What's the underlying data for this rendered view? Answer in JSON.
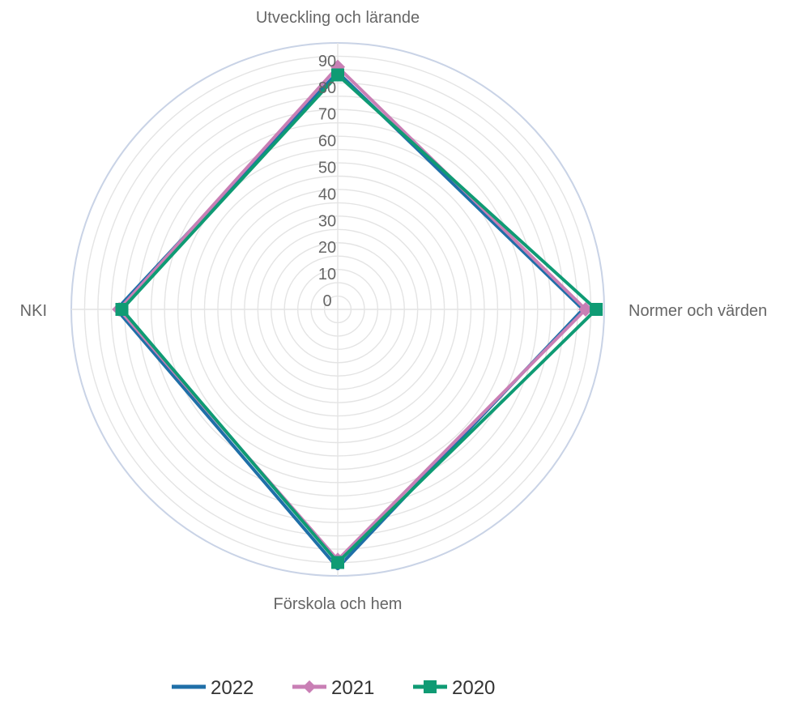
{
  "chart_data": {
    "type": "radar",
    "title": "",
    "axes": [
      "Utveckling och lärande",
      "Normer och värden",
      "Förskola och hem",
      "NKI"
    ],
    "r_ticks": [
      0,
      10,
      20,
      30,
      40,
      50,
      60,
      70,
      80,
      90
    ],
    "r_range": [
      0,
      100
    ],
    "grid": true,
    "legend_position": "bottom",
    "series": [
      {
        "name": "2022",
        "values": [
          89,
          92,
          97,
          83
        ],
        "color": "#1f6fa8",
        "marker": "none"
      },
      {
        "name": "2021",
        "values": [
          91,
          93,
          94,
          82
        ],
        "color": "#c97fb5",
        "marker": "diamond"
      },
      {
        "name": "2020",
        "values": [
          88,
          97,
          95,
          81
        ],
        "color": "#0f9b74",
        "marker": "square"
      }
    ]
  }
}
